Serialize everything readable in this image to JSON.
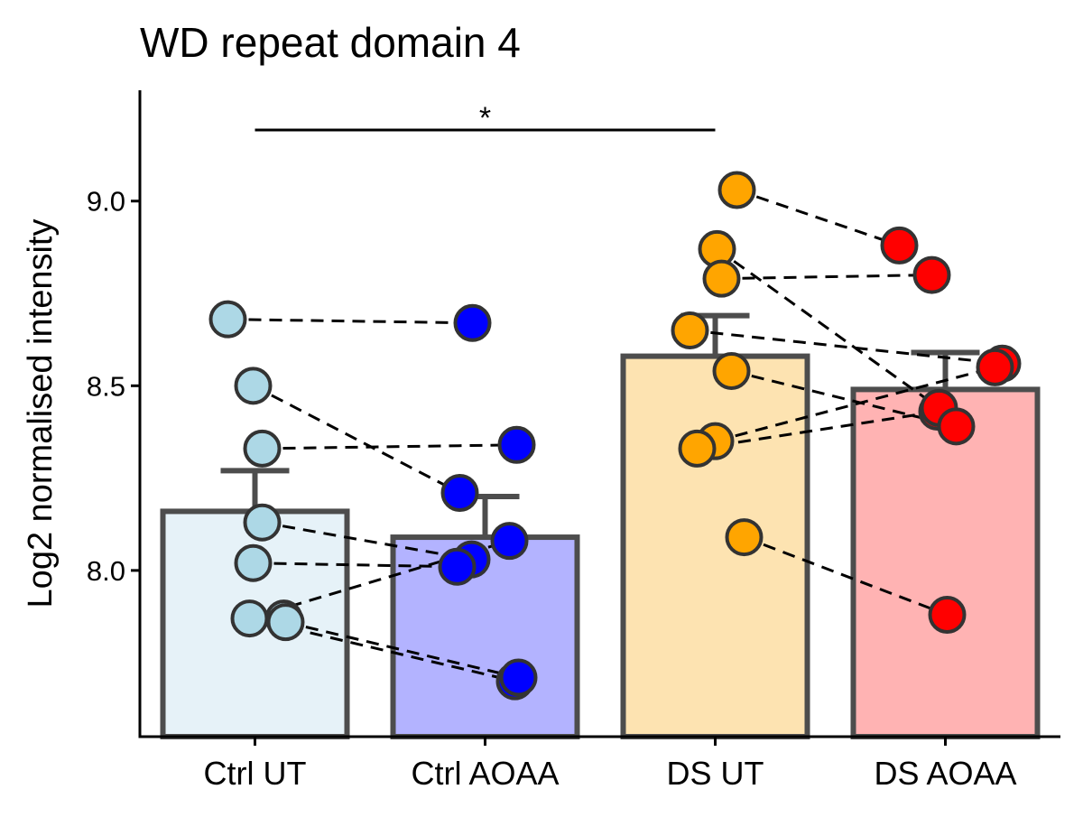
{
  "chart_data": {
    "type": "bar",
    "title": "WD repeat domain 4",
    "xlabel": "",
    "ylabel": "Log2 normalised intensity",
    "ylim": [
      7.55,
      9.3
    ],
    "yticks": [
      8.0,
      8.5,
      9.0
    ],
    "ytick_labels": [
      "8.0",
      "8.5",
      "9.0"
    ],
    "grid": false,
    "legend": "none",
    "categories": [
      "Ctrl UT",
      "Ctrl AOAA",
      "DS UT",
      "DS AOAA"
    ],
    "values": [
      8.16,
      8.09,
      8.58,
      8.49
    ],
    "errors": [
      0.11,
      0.11,
      0.11,
      0.1
    ],
    "bar_fill_colors": [
      "#e6f2f8",
      "#b3b3ff",
      "#fde3b1",
      "#ffb3b3"
    ],
    "bar_edge_color": "#4d4d4d",
    "point_colors": [
      "#add8e6",
      "#0000ff",
      "#ffa500",
      "#ff0000"
    ],
    "points": [
      [
        8.68,
        8.5,
        8.33,
        8.13,
        8.02,
        7.87,
        7.87,
        7.86
      ],
      [
        8.67,
        8.21,
        8.34,
        8.08,
        8.03,
        8.01,
        7.7,
        7.71
      ],
      [
        9.03,
        8.87,
        8.79,
        8.65,
        8.54,
        8.35,
        8.33,
        8.09
      ],
      [
        8.88,
        8.8,
        8.56,
        8.55,
        8.43,
        8.44,
        8.39,
        7.88
      ]
    ],
    "pairs": [
      {
        "group_a": 0,
        "group_b": 1,
        "value_a": 8.68,
        "value_b": 8.67
      },
      {
        "group_a": 0,
        "group_b": 1,
        "value_a": 8.5,
        "value_b": 8.21
      },
      {
        "group_a": 0,
        "group_b": 1,
        "value_a": 8.33,
        "value_b": 8.34
      },
      {
        "group_a": 0,
        "group_b": 1,
        "value_a": 8.13,
        "value_b": 8.03
      },
      {
        "group_a": 0,
        "group_b": 1,
        "value_a": 8.02,
        "value_b": 8.01
      },
      {
        "group_a": 0,
        "group_b": 1,
        "value_a": 7.87,
        "value_b": 8.08
      },
      {
        "group_a": 0,
        "group_b": 1,
        "value_a": 7.87,
        "value_b": 7.7
      },
      {
        "group_a": 0,
        "group_b": 1,
        "value_a": 7.86,
        "value_b": 7.71
      },
      {
        "group_a": 2,
        "group_b": 3,
        "value_a": 9.03,
        "value_b": 8.88
      },
      {
        "group_a": 2,
        "group_b": 3,
        "value_a": 8.87,
        "value_b": 8.44
      },
      {
        "group_a": 2,
        "group_b": 3,
        "value_a": 8.79,
        "value_b": 8.8
      },
      {
        "group_a": 2,
        "group_b": 3,
        "value_a": 8.65,
        "value_b": 8.56
      },
      {
        "group_a": 2,
        "group_b": 3,
        "value_a": 8.54,
        "value_b": 8.39
      },
      {
        "group_a": 2,
        "group_b": 3,
        "value_a": 8.35,
        "value_b": 8.55
      },
      {
        "group_a": 2,
        "group_b": 3,
        "value_a": 8.33,
        "value_b": 8.43
      },
      {
        "group_a": 2,
        "group_b": 3,
        "value_a": 8.09,
        "value_b": 7.88
      }
    ],
    "significance": [
      {
        "from": "Ctrl UT",
        "to": "DS UT",
        "label": "*"
      }
    ]
  }
}
